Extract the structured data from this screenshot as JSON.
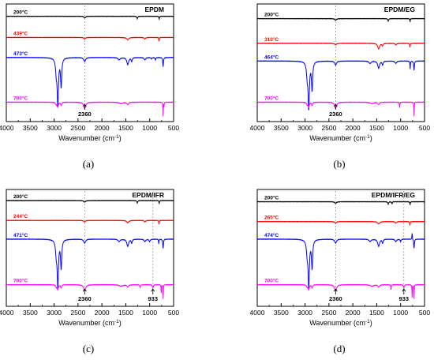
{
  "chart_data": [
    {
      "type": "line",
      "panel": "(a)",
      "title": "EPDM",
      "xlabel": "Wavenumber (cm",
      "xlabel_sup": "-1",
      "xlabel_end": ")",
      "xlim": [
        4000,
        500
      ],
      "x_ticks": [
        "4000",
        "3500",
        "3000",
        "2500",
        "2000",
        "1500",
        "1000",
        "500"
      ],
      "grid": false,
      "series": [
        {
          "name": "200°C",
          "color": "#000000"
        },
        {
          "name": "439°C",
          "color": "#ff0000"
        },
        {
          "name": "473°C",
          "color": "#0000ff"
        },
        {
          "name": "700°C",
          "color": "#ff00ff"
        }
      ],
      "annotations": [
        {
          "text": "2360",
          "x": 2360
        }
      ]
    },
    {
      "type": "line",
      "panel": "(b)",
      "title": "EPDM/EG",
      "xlabel": "Wavenumber (cm",
      "xlabel_sup": "-1",
      "xlabel_end": ")",
      "xlim": [
        4000,
        500
      ],
      "x_ticks": [
        "4000",
        "3500",
        "3000",
        "2500",
        "2000",
        "1500",
        "1000",
        "500"
      ],
      "grid": false,
      "series": [
        {
          "name": "200°C",
          "color": "#000000"
        },
        {
          "name": "310°C",
          "color": "#ff0000"
        },
        {
          "name": "464°C",
          "color": "#0000ff"
        },
        {
          "name": "700°C",
          "color": "#ff00ff"
        }
      ],
      "annotations": [
        {
          "text": "2360",
          "x": 2360
        }
      ]
    },
    {
      "type": "line",
      "panel": "(c)",
      "title": "EPDM/IFR",
      "xlabel": "Wavenumber (cm",
      "xlabel_sup": "-1",
      "xlabel_end": ")",
      "xlim": [
        4000,
        500
      ],
      "x_ticks": [
        "4000",
        "3500",
        "3000",
        "2500",
        "2000",
        "1500",
        "1000",
        "500"
      ],
      "grid": false,
      "series": [
        {
          "name": "200°C",
          "color": "#000000"
        },
        {
          "name": "244°C",
          "color": "#ff0000"
        },
        {
          "name": "471°C",
          "color": "#0000ff"
        },
        {
          "name": "700°C",
          "color": "#ff00ff"
        }
      ],
      "annotations": [
        {
          "text": "2360",
          "x": 2360
        },
        {
          "text": "933",
          "x": 933
        }
      ]
    },
    {
      "type": "line",
      "panel": "(d)",
      "title": "EPDM/IFR/EG",
      "xlabel": "Wavenumber (cm",
      "xlabel_sup": "-1",
      "xlabel_end": ")",
      "xlim": [
        4000,
        500
      ],
      "x_ticks": [
        "4000",
        "3500",
        "3000",
        "2500",
        "2000",
        "1500",
        "1000",
        "500"
      ],
      "grid": false,
      "series": [
        {
          "name": "200°C",
          "color": "#000000"
        },
        {
          "name": "265°C",
          "color": "#ff0000"
        },
        {
          "name": "474°C",
          "color": "#0000ff"
        },
        {
          "name": "700°C",
          "color": "#ff00ff"
        }
      ],
      "annotations": [
        {
          "text": "2360",
          "x": 2360
        },
        {
          "text": "933",
          "x": 933
        }
      ]
    }
  ]
}
